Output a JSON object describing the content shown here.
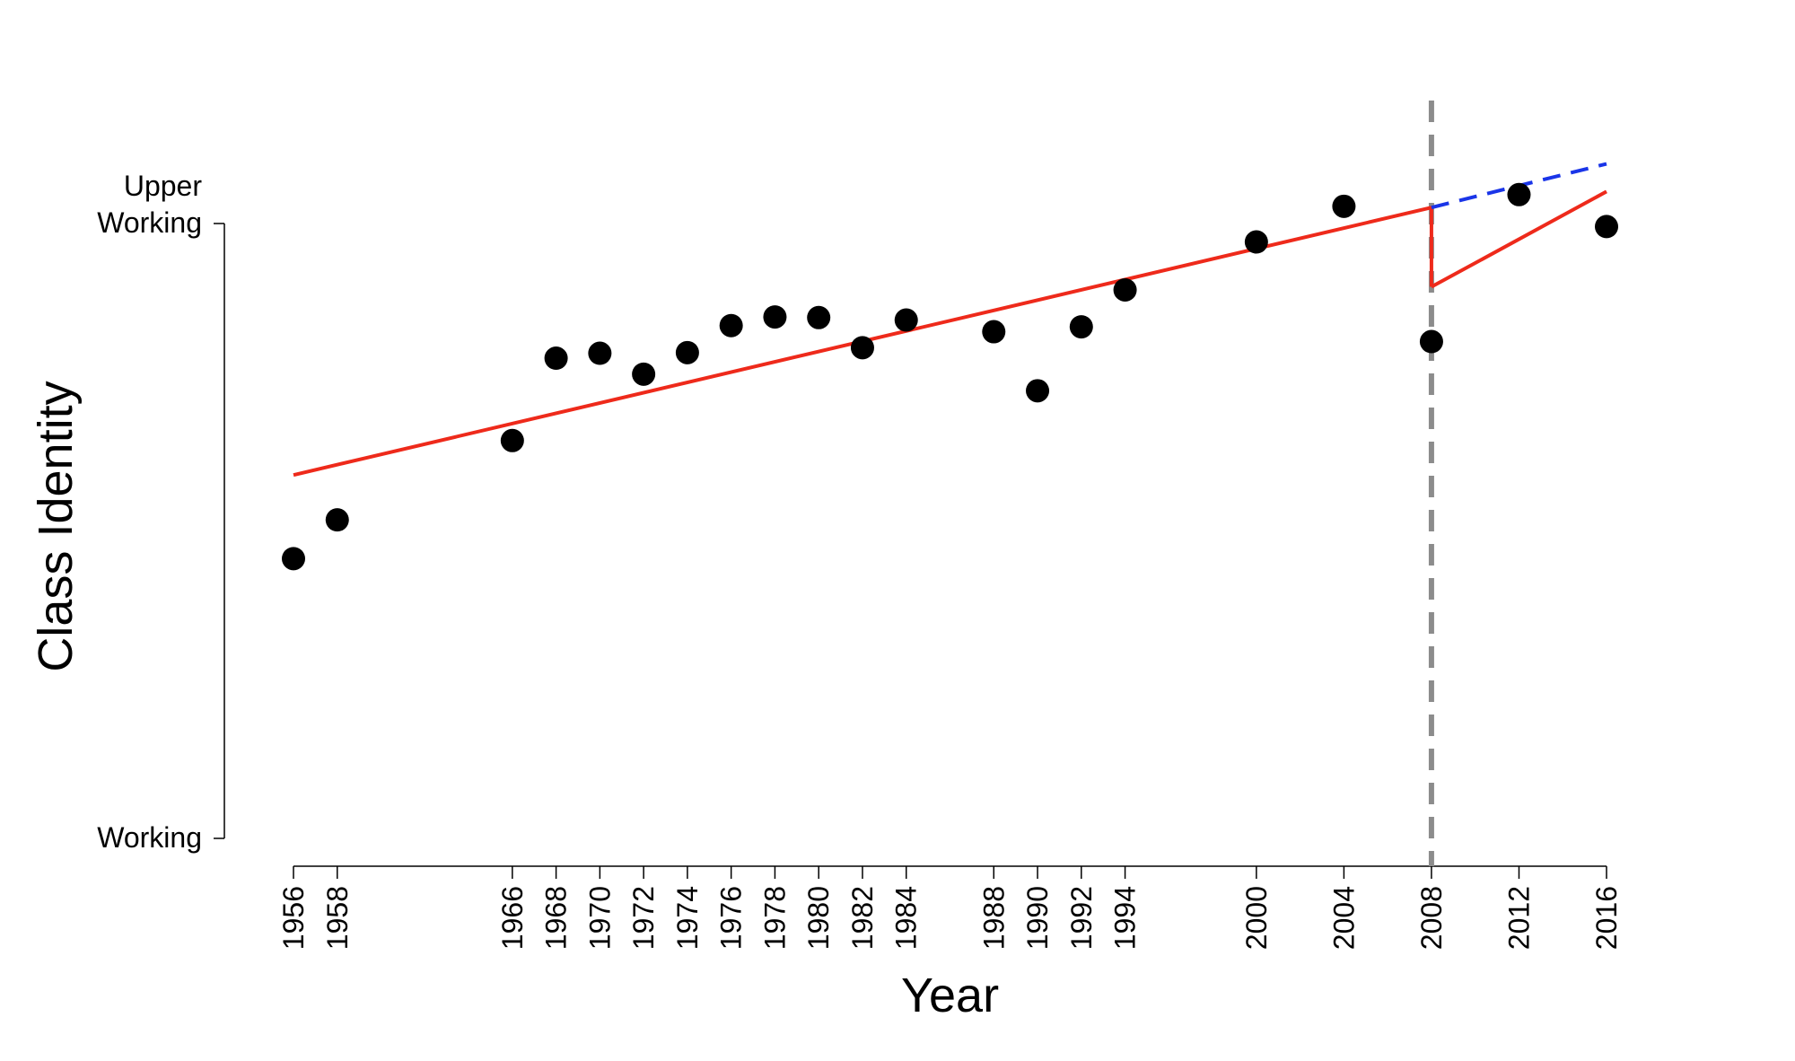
{
  "chart_data": {
    "type": "scatter",
    "xlabel": "Year",
    "ylabel": "Class Identity",
    "xlim": [
      1956,
      2016
    ],
    "ylim": [
      0,
      1
    ],
    "x_ticks": [
      1956,
      1958,
      1966,
      1968,
      1970,
      1972,
      1974,
      1976,
      1978,
      1980,
      1982,
      1984,
      1988,
      1990,
      1992,
      1994,
      2000,
      2004,
      2008,
      2012,
      2016
    ],
    "y_ticks": [
      {
        "value": 0,
        "label": "Working"
      },
      {
        "value": 1,
        "label": "Upper\nWorking"
      }
    ],
    "points": [
      {
        "x": 1956,
        "y": 0.455
      },
      {
        "x": 1958,
        "y": 0.518
      },
      {
        "x": 1966,
        "y": 0.647
      },
      {
        "x": 1968,
        "y": 0.781
      },
      {
        "x": 1970,
        "y": 0.789
      },
      {
        "x": 1972,
        "y": 0.755
      },
      {
        "x": 1974,
        "y": 0.79
      },
      {
        "x": 1976,
        "y": 0.834
      },
      {
        "x": 1978,
        "y": 0.848
      },
      {
        "x": 1980,
        "y": 0.847
      },
      {
        "x": 1982,
        "y": 0.798
      },
      {
        "x": 1984,
        "y": 0.843
      },
      {
        "x": 1988,
        "y": 0.824
      },
      {
        "x": 1990,
        "y": 0.728
      },
      {
        "x": 1992,
        "y": 0.832
      },
      {
        "x": 1994,
        "y": 0.892
      },
      {
        "x": 2000,
        "y": 0.97
      },
      {
        "x": 2004,
        "y": 1.028
      },
      {
        "x": 2008,
        "y": 0.808
      },
      {
        "x": 2012,
        "y": 1.047
      },
      {
        "x": 2016,
        "y": 0.995
      }
    ],
    "fit_lines": [
      {
        "color": "#ee2a1b",
        "style": "solid",
        "x": [
          1956,
          2008
        ],
        "y": [
          0.591,
          1.026
        ]
      },
      {
        "color": "#ee2a1b",
        "style": "solid",
        "x": [
          2008,
          2008
        ],
        "y": [
          1.026,
          0.897
        ]
      },
      {
        "color": "#ee2a1b",
        "style": "solid",
        "x": [
          2008,
          2016
        ],
        "y": [
          0.897,
          1.052
        ]
      },
      {
        "color": "#1a35e8",
        "style": "dashed",
        "x": [
          2008,
          2016
        ],
        "y": [
          1.026,
          1.097
        ]
      }
    ],
    "reference_line": {
      "x": 2008,
      "color": "#8c8c8c",
      "style": "dashed"
    },
    "point_color": "#000000"
  }
}
